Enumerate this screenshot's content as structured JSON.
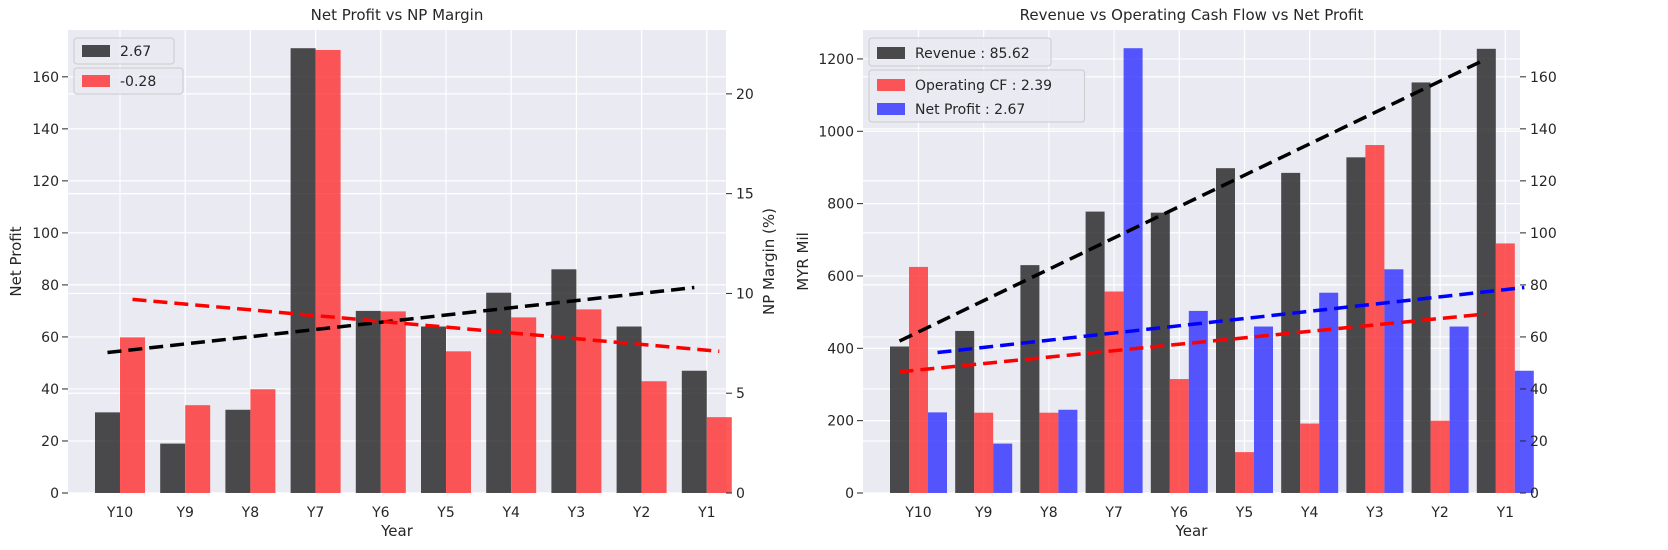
{
  "chart_data": [
    {
      "type": "bar",
      "title": "Net Profit vs NP Margin",
      "xlabel": "Year",
      "ylabel": "Net Profit",
      "ylabel_right": "NP Margin (%)",
      "categories": [
        "Y10",
        "Y9",
        "Y8",
        "Y7",
        "Y6",
        "Y5",
        "Y4",
        "Y3",
        "Y2",
        "Y1"
      ],
      "ylim": [
        0,
        178
      ],
      "yticks": [
        0,
        20,
        40,
        60,
        80,
        100,
        120,
        140,
        160
      ],
      "ylim_right": [
        0,
        23.2
      ],
      "yticks_right": [
        0,
        5,
        10,
        15,
        20
      ],
      "series": [
        {
          "name": "2.67",
          "axis": "left",
          "color": "#262626",
          "values": [
            31,
            19,
            32,
            171,
            70,
            64,
            77,
            86,
            64,
            47
          ]
        },
        {
          "name": "-0.28",
          "axis": "right",
          "color": "#ff3333",
          "values": [
            7.8,
            4.4,
            5.2,
            22.2,
            9.1,
            7.1,
            8.8,
            9.2,
            5.6,
            3.8
          ]
        }
      ],
      "trendlines": [
        {
          "axis": "left",
          "color": "#000000",
          "start": 54,
          "end": 79
        },
        {
          "axis": "right",
          "color": "#ff0000",
          "start": 9.7,
          "end": 7.1
        }
      ],
      "legend": "top-left",
      "grid": true
    },
    {
      "type": "bar",
      "title": "Revenue vs Operating Cash Flow vs Net Profit",
      "xlabel": "Year",
      "ylabel": "MYR Mil",
      "categories": [
        "Y10",
        "Y9",
        "Y8",
        "Y7",
        "Y6",
        "Y5",
        "Y4",
        "Y3",
        "Y2",
        "Y1"
      ],
      "ylim": [
        0,
        1280
      ],
      "yticks": [
        0,
        200,
        400,
        600,
        800,
        1000,
        1200
      ],
      "ylim_right": [
        0,
        178
      ],
      "yticks_right": [
        0,
        20,
        40,
        60,
        80,
        100,
        120,
        140,
        160
      ],
      "series": [
        {
          "name": "Revenue : 85.62",
          "axis": "left",
          "color": "#262626",
          "values": [
            405,
            448,
            630,
            778,
            775,
            898,
            885,
            928,
            1135,
            1228
          ]
        },
        {
          "name": "Operating CF : 2.39",
          "axis": "left",
          "color": "#ff3333",
          "values": [
            625,
            222,
            222,
            557,
            315,
            113,
            192,
            962,
            200,
            690
          ]
        },
        {
          "name": "Net Profit : 2.67",
          "axis": "right",
          "color": "#3333ff",
          "values": [
            31,
            19,
            32,
            171,
            70,
            64,
            77,
            86,
            64,
            47
          ]
        }
      ],
      "trendlines": [
        {
          "axis": "left",
          "color": "#000000",
          "start": 420,
          "end": 1200
        },
        {
          "axis": "left",
          "color": "#ff0000",
          "start": 335,
          "end": 495
        },
        {
          "axis": "right",
          "color": "#0000ff",
          "start": 54,
          "end": 79
        }
      ],
      "legend": "top-left",
      "grid": true
    }
  ]
}
